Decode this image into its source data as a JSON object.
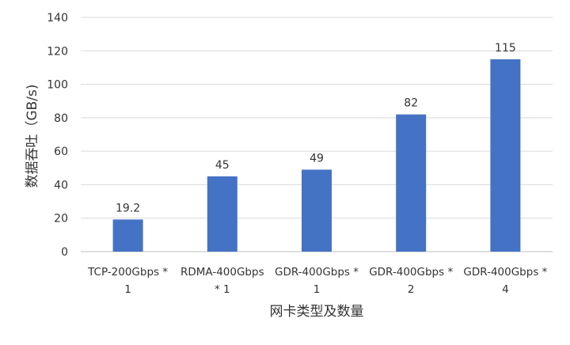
{
  "chart_data": {
    "type": "bar",
    "title": "",
    "categories": [
      [
        "TCP-200Gbps *",
        "1"
      ],
      [
        "RDMA-400Gbps",
        "* 1"
      ],
      [
        "GDR-400Gbps *",
        "1"
      ],
      [
        "GDR-400Gbps *",
        "2"
      ],
      [
        "GDR-400Gbps *",
        "4"
      ]
    ],
    "values": [
      19.2,
      45,
      49,
      82,
      115
    ],
    "data_labels": [
      "19.2",
      "45",
      "49",
      "82",
      "115"
    ],
    "xlabel": "网卡类型及数量",
    "ylabel": "数据吞吐（GB/s)",
    "ylim": [
      0,
      140
    ],
    "yticks": [
      0,
      20,
      40,
      60,
      80,
      100,
      120,
      140
    ],
    "grid": true,
    "legend": "none",
    "bar_color": "#4472C4"
  }
}
